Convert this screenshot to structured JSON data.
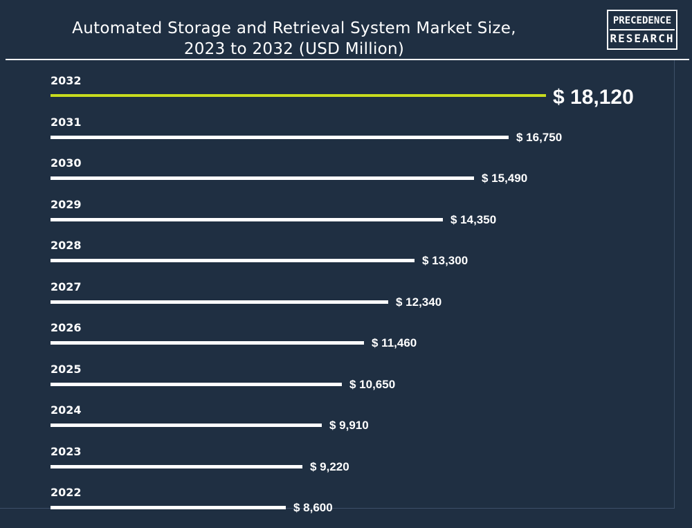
{
  "title_line1": "Automated Storage and Retrieval System Market Size,",
  "title_line2": "2023 to 2032 (USD Million)",
  "logo": {
    "line1": "PRECEDENCE",
    "line2": "RESEARCH"
  },
  "colors": {
    "background": "#1f2f42",
    "bar": "#ffffff",
    "highlight": "#c8dc1e",
    "text": "#ffffff"
  },
  "chart_data": {
    "type": "bar",
    "orientation": "horizontal",
    "title": "Automated Storage and Retrieval System Market Size, 2023 to 2032 (USD Million)",
    "categories": [
      "2032",
      "2031",
      "2030",
      "2029",
      "2028",
      "2027",
      "2026",
      "2025",
      "2024",
      "2023",
      "2022"
    ],
    "values": [
      18120,
      16750,
      15490,
      14350,
      13300,
      12340,
      11460,
      10650,
      9910,
      9220,
      8600
    ],
    "value_labels": [
      "$ 18,120",
      "$ 16,750",
      "$ 15,490",
      "$ 14,350",
      "$ 13,300",
      "$ 12,340",
      "$ 11,460",
      "$ 10,650",
      "$ 9,910",
      "$ 9,220",
      "$ 8,600"
    ],
    "highlight_category": "2032",
    "xlim": [
      0,
      18120
    ],
    "grid": false,
    "legend": "none"
  }
}
